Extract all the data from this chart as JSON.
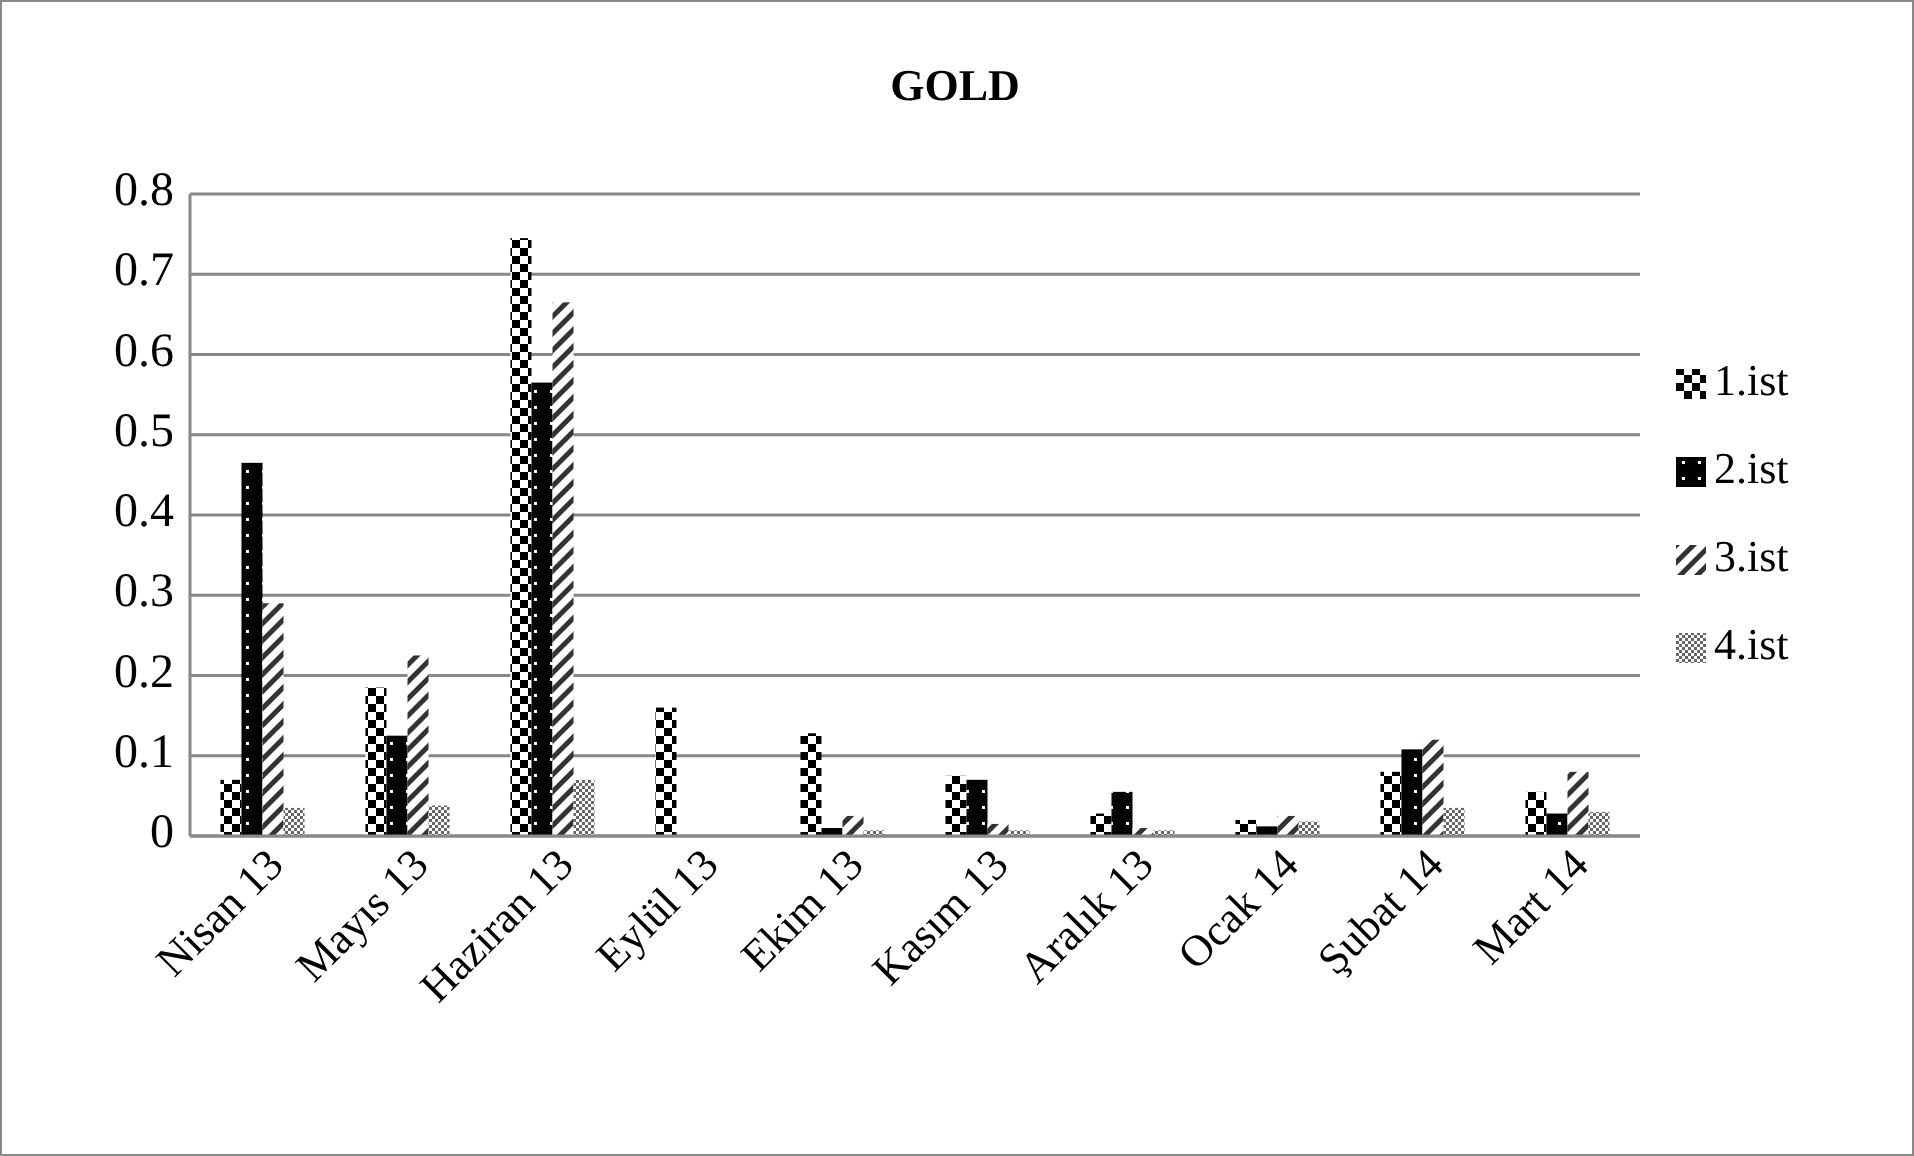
{
  "chart_data": {
    "type": "bar",
    "title": "GOLD",
    "categories": [
      "Nisan 13",
      "Mayıs 13",
      "Haziran 13",
      "Eylül 13",
      "Ekim 13",
      "Kasım 13",
      "Aralık 13",
      "Ocak 14",
      "Şubat 14",
      "Mart 14"
    ],
    "series": [
      {
        "name": "1.ist",
        "color": "#000000",
        "values": [
          0.07,
          0.185,
          0.745,
          0.16,
          0.128,
          0.075,
          0.028,
          0.02,
          0.08,
          0.055
        ]
      },
      {
        "name": "2.ist",
        "color": "#000000",
        "values": [
          0.465,
          0.125,
          0.565,
          null,
          0.01,
          0.07,
          0.055,
          0.012,
          0.108,
          0.028
        ]
      },
      {
        "name": "3.ist",
        "color": "#333333",
        "values": [
          0.29,
          0.225,
          0.665,
          null,
          0.025,
          0.015,
          0.01,
          0.025,
          0.12,
          0.08
        ]
      },
      {
        "name": "4.ist",
        "color": "#666666",
        "values": [
          0.035,
          0.038,
          0.07,
          null,
          0.007,
          0.007,
          0.007,
          0.018,
          0.035,
          0.03
        ]
      }
    ],
    "ylim": [
      0,
      0.8
    ],
    "yticks": [
      0,
      0.1,
      0.2,
      0.3,
      0.4,
      0.5,
      0.6,
      0.7,
      0.8
    ],
    "grid": "y",
    "legend": "right"
  }
}
